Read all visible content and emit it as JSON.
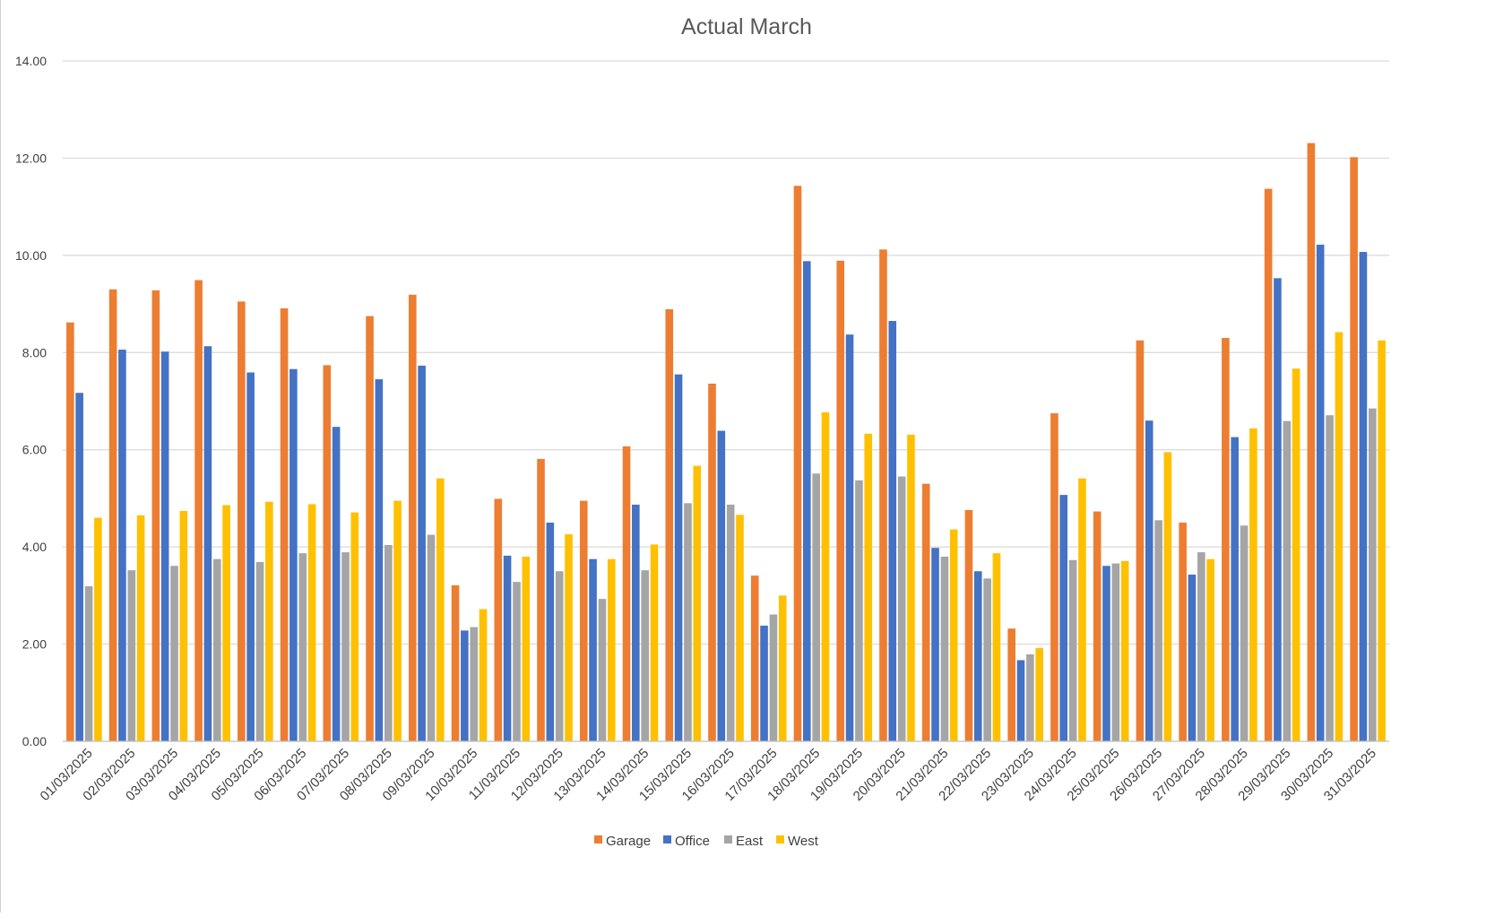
{
  "chart_data": {
    "type": "bar",
    "title": "Actual March",
    "xlabel": "",
    "ylabel": "",
    "ylim": [
      0,
      14
    ],
    "yticks": [
      "0.00",
      "2.00",
      "4.00",
      "6.00",
      "8.00",
      "10.00",
      "12.00",
      "14.00"
    ],
    "grid": true,
    "legend_position": "bottom",
    "categories": [
      "01/03/2025",
      "02/03/2025",
      "03/03/2025",
      "04/03/2025",
      "05/03/2025",
      "06/03/2025",
      "07/03/2025",
      "08/03/2025",
      "09/03/2025",
      "10/03/2025",
      "11/03/2025",
      "12/03/2025",
      "13/03/2025",
      "14/03/2025",
      "15/03/2025",
      "16/03/2025",
      "17/03/2025",
      "18/03/2025",
      "19/03/2025",
      "20/03/2025",
      "21/03/2025",
      "22/03/2025",
      "23/03/2025",
      "24/03/2025",
      "25/03/2025",
      "26/03/2025",
      "27/03/2025",
      "28/03/2025",
      "29/03/2025",
      "30/03/2025",
      "31/03/2025"
    ],
    "series": [
      {
        "name": "Garage",
        "color": "#ED7D31",
        "values": [
          8.62,
          9.3,
          9.28,
          9.49,
          9.05,
          8.91,
          7.74,
          8.75,
          9.19,
          3.21,
          4.99,
          5.81,
          4.95,
          6.07,
          8.89,
          7.36,
          3.41,
          11.43,
          9.89,
          10.12,
          5.3,
          4.76,
          2.32,
          6.75,
          4.73,
          8.25,
          4.5,
          8.3,
          11.37,
          12.31,
          12.02
        ]
      },
      {
        "name": "Office",
        "color": "#4472C4",
        "values": [
          7.17,
          8.06,
          8.02,
          8.13,
          7.59,
          7.66,
          6.47,
          7.45,
          7.73,
          2.28,
          3.82,
          4.5,
          3.75,
          4.87,
          7.55,
          6.39,
          2.38,
          9.88,
          8.37,
          8.65,
          3.98,
          3.5,
          1.67,
          5.07,
          3.61,
          6.6,
          3.43,
          6.26,
          9.53,
          10.22,
          10.07
        ]
      },
      {
        "name": "East",
        "color": "#A5A5A5",
        "values": [
          3.19,
          3.52,
          3.61,
          3.75,
          3.69,
          3.87,
          3.89,
          4.04,
          4.25,
          2.35,
          3.28,
          3.5,
          2.93,
          3.52,
          4.9,
          4.87,
          2.61,
          5.51,
          5.37,
          5.45,
          3.8,
          3.35,
          1.79,
          3.73,
          3.66,
          4.55,
          3.89,
          4.44,
          6.59,
          6.71,
          6.85
        ]
      },
      {
        "name": "West",
        "color": "#FFC000",
        "values": [
          4.6,
          4.65,
          4.74,
          4.86,
          4.93,
          4.88,
          4.71,
          4.95,
          5.41,
          2.72,
          3.8,
          4.26,
          3.75,
          4.05,
          5.67,
          4.66,
          3.0,
          6.77,
          6.33,
          6.31,
          4.36,
          3.87,
          1.92,
          5.41,
          3.71,
          5.95,
          3.75,
          6.44,
          7.67,
          8.42,
          8.25
        ]
      }
    ]
  },
  "colors": {
    "gridline": "#d9d9d9",
    "axis": "#bfbfbf",
    "text": "#404040",
    "title": "#595959"
  }
}
